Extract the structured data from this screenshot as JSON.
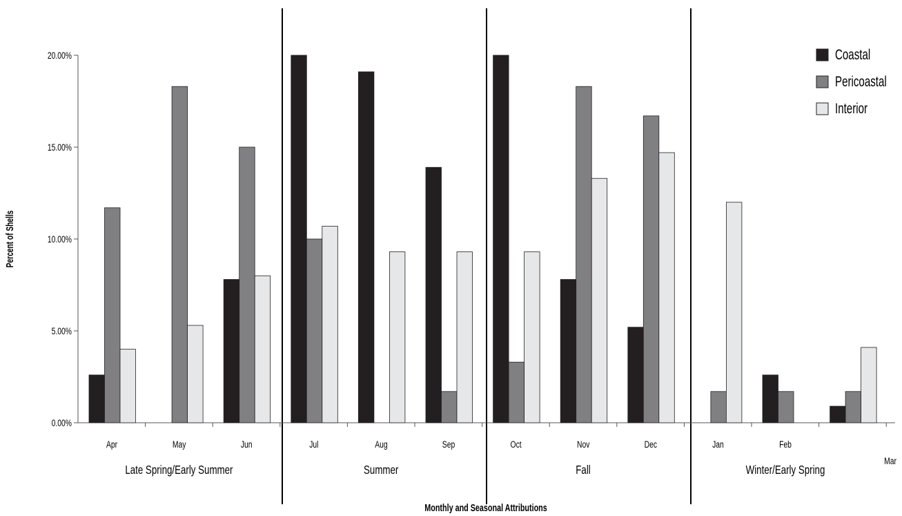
{
  "chart_data": {
    "type": "bar",
    "title": "",
    "xlabel": "Monthly and Seasonal Attributions",
    "ylabel": "Percent of Shells",
    "ylim": [
      0,
      0.2
    ],
    "yticks": [
      0,
      0.05,
      0.1,
      0.15,
      0.2
    ],
    "ytick_labels": [
      "0.00%",
      "5.00%",
      "10.00%",
      "15.00%",
      "20.00%"
    ],
    "grid": false,
    "legend": "top-right",
    "categories": [
      "Apr",
      "May",
      "Jun",
      "Jul",
      "Aug",
      "Sep",
      "Oct",
      "Nov",
      "Dec",
      "Jan",
      "Feb",
      "Mar"
    ],
    "series": [
      {
        "name": "Coastal",
        "color": "#231f20",
        "values": [
          0.026,
          0,
          0.078,
          0.2,
          0.191,
          0.139,
          0.2,
          0.078,
          0.052,
          0,
          0.026,
          0.009
        ]
      },
      {
        "name": "Pericoastal",
        "color": "#808083",
        "values": [
          0.117,
          0.183,
          0.15,
          0.1,
          0,
          0.017,
          0.033,
          0.183,
          0.167,
          0.017,
          0.017,
          0.017
        ]
      },
      {
        "name": "Interior",
        "color": "#e6e7e8",
        "values": [
          0.04,
          0.053,
          0.08,
          0.107,
          0.093,
          0.093,
          0.093,
          0.133,
          0.147,
          0.12,
          0,
          0.041
        ]
      }
    ],
    "seasons": [
      {
        "label": "Late Spring/Early Summer",
        "months": 3
      },
      {
        "label": "Summer",
        "months": 3
      },
      {
        "label": "Fall",
        "months": 3
      },
      {
        "label": "Winter/Early Spring",
        "months": 3
      }
    ]
  }
}
